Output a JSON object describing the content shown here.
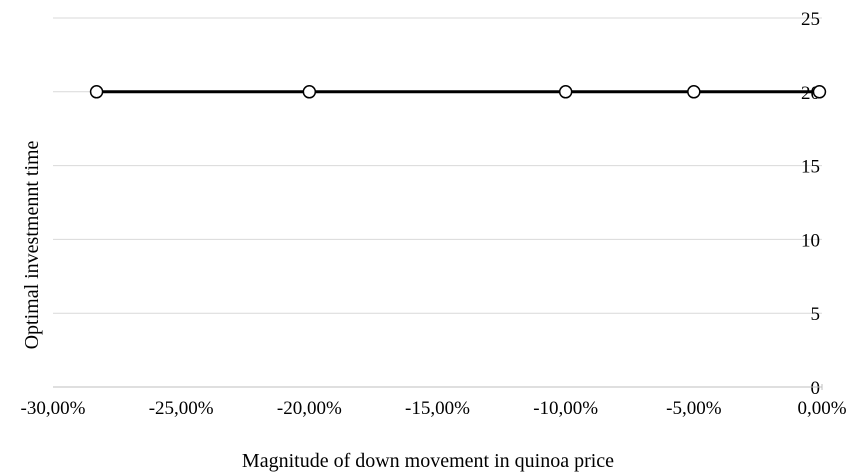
{
  "chart_data": {
    "type": "line",
    "xlabel": "Magnitude of down movement in quinoa price",
    "ylabel": "Optimal investmennt time",
    "xlim": [
      -30,
      0
    ],
    "ylim": [
      0,
      25
    ],
    "x_ticks": [
      "-30,00%",
      "-25,00%",
      "-20,00%",
      "-15,00%",
      "-10,00%",
      "-5,00%",
      "0,00%"
    ],
    "y_ticks": [
      "0",
      "5",
      "10",
      "15",
      "20",
      "25"
    ],
    "y_axis_position": "right",
    "grid": "horizontal",
    "series": [
      {
        "x": [
          -28.3,
          -20,
          -10,
          -5,
          -0.1
        ],
        "y": [
          20,
          20,
          20,
          20,
          20
        ],
        "color": "#000000",
        "marker": "open-circle"
      }
    ]
  }
}
